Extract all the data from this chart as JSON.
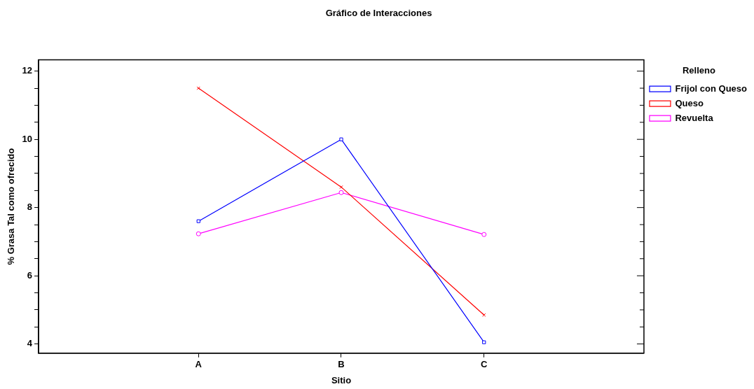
{
  "chart_data": {
    "type": "line",
    "title": "Gráfico de Interacciones",
    "xlabel": "Sitio",
    "ylabel": "% Grasa Tal como ofrecido",
    "legend_title": "Relleno",
    "legend": "top right",
    "grid": false,
    "line_style": "solid",
    "categories": [
      "A",
      "B",
      "C"
    ],
    "series": [
      {
        "name": "Frijol con Queso",
        "color": "#0000ff",
        "marker": "square",
        "values": [
          7.6,
          10.0,
          4.05
        ]
      },
      {
        "name": "Queso",
        "color": "#ff0000",
        "marker": "cross",
        "values": [
          11.5,
          8.6,
          4.85
        ]
      },
      {
        "name": "Revuelta",
        "color": "#ff00ff",
        "marker": "circle",
        "values": [
          7.23,
          8.44,
          7.21
        ]
      }
    ],
    "ylim": [
      3.73,
      12.33
    ],
    "yticks": [
      4,
      {
        "value": 4.5,
        "label": null
      },
      {
        "value": 5,
        "label": null
      },
      {
        "value": 5.5,
        "label": null
      },
      6,
      {
        "value": 6.5,
        "label": null
      },
      {
        "value": 7,
        "label": null
      },
      {
        "value": 7.5,
        "label": null
      },
      8,
      {
        "value": 8.5,
        "label": null
      },
      {
        "value": 9,
        "label": null
      },
      {
        "value": 9.5,
        "label": null
      },
      10,
      {
        "value": 10.5,
        "label": null
      },
      {
        "value": 11,
        "label": null
      },
      {
        "value": 11.5,
        "label": null
      },
      12
    ]
  }
}
